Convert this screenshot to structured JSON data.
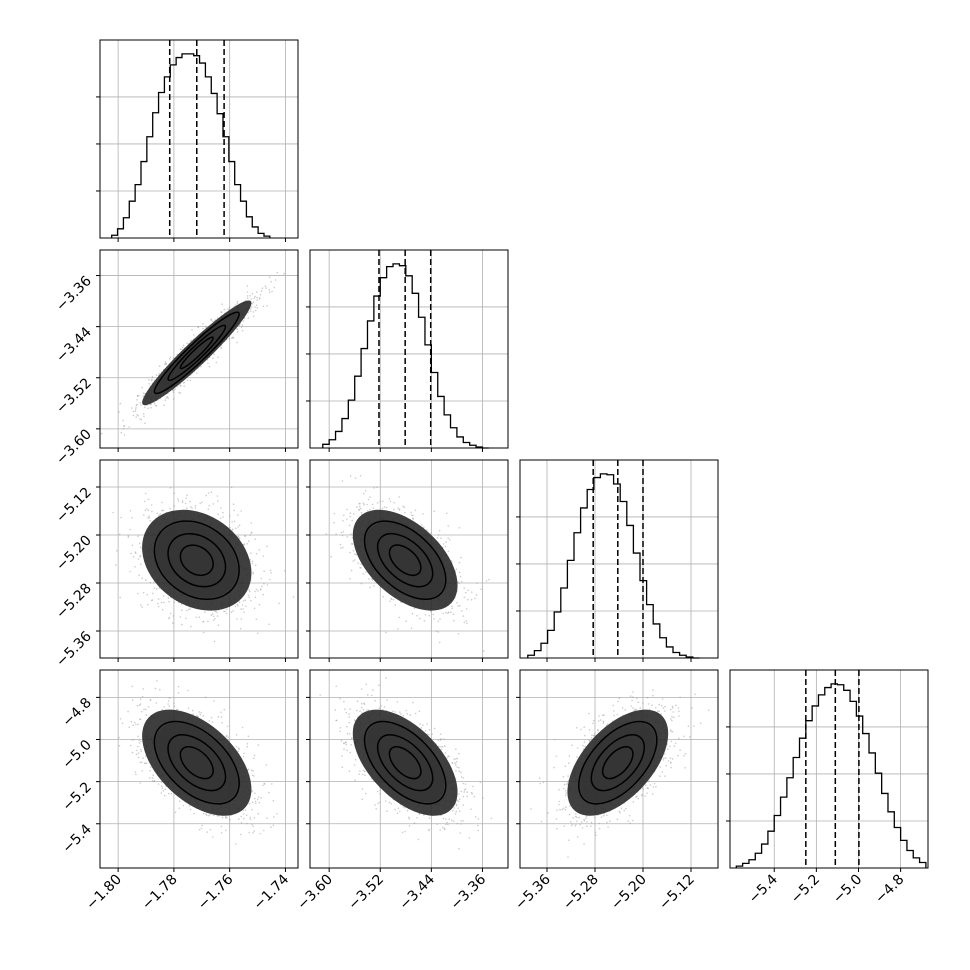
{
  "chart_data": {
    "type": "corner",
    "grid": true,
    "n_params": 4,
    "params": [
      {
        "index": 0,
        "ticks": [
          -1.8,
          -1.78,
          -1.76,
          -1.74
        ],
        "tick_labels": [
          "−1.80",
          "−1.78",
          "−1.76",
          "−1.74"
        ],
        "range": [
          -1.8065,
          -1.7355
        ],
        "quantiles": [
          -1.7815,
          -1.7718,
          -1.762
        ],
        "median": -1.7718,
        "sigma": 0.0098
      },
      {
        "index": 1,
        "ticks": [
          -3.6,
          -3.52,
          -3.44,
          -3.36
        ],
        "tick_labels": [
          "−3.60",
          "−3.52",
          "−3.44",
          "−3.36"
        ],
        "range": [
          -3.63,
          -3.32
        ],
        "quantiles": [
          -3.522,
          -3.481,
          -3.441
        ],
        "median": -3.481,
        "sigma": 0.041
      },
      {
        "index": 2,
        "ticks": [
          -5.36,
          -5.28,
          -5.2,
          -5.12
        ],
        "tick_labels": [
          "−5.36",
          "−5.28",
          "−5.20",
          "−5.12"
        ],
        "range": [
          -5.405,
          -5.075
        ],
        "quantiles": [
          -5.283,
          -5.242,
          -5.2
        ],
        "median": -5.242,
        "sigma": 0.042
      },
      {
        "index": 3,
        "ticks": [
          -5.4,
          -5.2,
          -5.0,
          -4.8
        ],
        "tick_labels": [
          "−5.4",
          "−5.2",
          "−5.0",
          "−4.8"
        ],
        "range": [
          -5.61,
          -4.67
        ],
        "quantiles": [
          -5.25,
          -5.11,
          -4.998
        ],
        "median": -5.11,
        "sigma": 0.126
      }
    ],
    "correlations": {
      "1-0": 0.95,
      "2-0": -0.25,
      "2-1": -0.5,
      "3-0": -0.5,
      "3-1": -0.55,
      "3-2": 0.55
    },
    "histograms": [
      {
        "param": 0,
        "bin_edges": [
          -1.8023,
          -1.8002,
          -1.7981,
          -1.796,
          -1.7939,
          -1.7918,
          -1.7897,
          -1.7876,
          -1.7855,
          -1.7834,
          -1.7813,
          -1.7792,
          -1.7771,
          -1.775,
          -1.7729,
          -1.7708,
          -1.7687,
          -1.7666,
          -1.7645,
          -1.7624,
          -1.7603,
          -1.7582,
          -1.7561,
          -1.754,
          -1.7519,
          -1.7498,
          -1.7477,
          -1.7456
        ],
        "counts": [
          3,
          10,
          22,
          40,
          58,
          83,
          110,
          136,
          158,
          175,
          188,
          196,
          200,
          200,
          198,
          190,
          175,
          157,
          135,
          110,
          83,
          58,
          40,
          23,
          12,
          5,
          2
        ]
      },
      {
        "param": 1,
        "bin_edges": [
          -3.61,
          -3.6,
          -3.59,
          -3.58,
          -3.57,
          -3.56,
          -3.55,
          -3.54,
          -3.53,
          -3.52,
          -3.51,
          -3.5,
          -3.49,
          -3.48,
          -3.47,
          -3.46,
          -3.45,
          -3.44,
          -3.43,
          -3.42,
          -3.41,
          -3.4,
          -3.39,
          -3.38,
          -3.37,
          -3.36,
          -3.35
        ],
        "counts": [
          4,
          9,
          18,
          32,
          52,
          78,
          108,
          138,
          165,
          185,
          197,
          200,
          198,
          187,
          168,
          142,
          112,
          82,
          56,
          36,
          22,
          12,
          6,
          3,
          1,
          0
        ]
      },
      {
        "param": 2,
        "bin_edges": [
          -5.392,
          -5.381,
          -5.37,
          -5.359,
          -5.348,
          -5.337,
          -5.326,
          -5.315,
          -5.304,
          -5.293,
          -5.282,
          -5.271,
          -5.26,
          -5.249,
          -5.238,
          -5.227,
          -5.216,
          -5.205,
          -5.194,
          -5.183,
          -5.172,
          -5.161,
          -5.15,
          -5.139,
          -5.128,
          -5.117,
          -5.106
        ],
        "counts": [
          3,
          8,
          16,
          30,
          50,
          76,
          106,
          136,
          163,
          183,
          196,
          200,
          199,
          189,
          170,
          144,
          114,
          84,
          58,
          37,
          22,
          12,
          6,
          3,
          1,
          0
        ]
      },
      {
        "param": 3,
        "bin_edges": [
          -5.58,
          -5.55,
          -5.52,
          -5.49,
          -5.46,
          -5.43,
          -5.4,
          -5.37,
          -5.34,
          -5.31,
          -5.28,
          -5.25,
          -5.22,
          -5.19,
          -5.16,
          -5.13,
          -5.1,
          -5.07,
          -5.04,
          -5.01,
          -4.98,
          -4.95,
          -4.92,
          -4.89,
          -4.86,
          -4.83,
          -4.8,
          -4.77,
          -4.74,
          -4.71,
          -4.68
        ],
        "counts": [
          2,
          5,
          9,
          16,
          26,
          40,
          57,
          77,
          98,
          120,
          141,
          160,
          176,
          188,
          196,
          200,
          199,
          193,
          181,
          165,
          146,
          125,
          103,
          81,
          61,
          44,
          30,
          19,
          11,
          6
        ]
      }
    ]
  }
}
